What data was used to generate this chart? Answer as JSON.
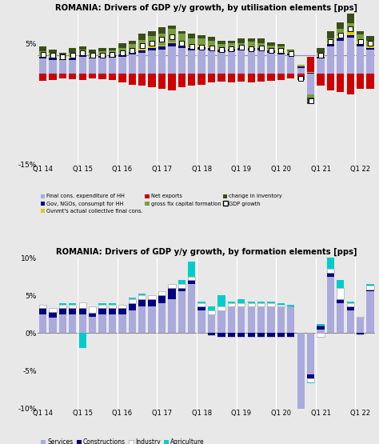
{
  "title1": "ROMANIA: Drivers of GDP y/y growth, by utilisation elements [pps]",
  "title2": "ROMANIA: Drivers of GDP y/y growth, by formation elements [pps]",
  "xtick_labels": [
    "Q1 14",
    "",
    "",
    "",
    "Q1 15",
    "",
    "",
    "",
    "Q1 16",
    "",
    "",
    "",
    "Q1 17",
    "",
    "",
    "",
    "Q1 18",
    "",
    "",
    "",
    "Q1 19",
    "",
    "",
    "",
    "Q1 20",
    "",
    "",
    "",
    "Q1 21",
    "",
    "",
    "",
    "Q1 22",
    ""
  ],
  "n": 34,
  "util": {
    "final_cons_hh": [
      2.5,
      2.3,
      2.2,
      2.3,
      2.8,
      2.5,
      2.6,
      2.7,
      2.8,
      3.2,
      3.5,
      3.8,
      4.0,
      4.5,
      4.2,
      3.8,
      4.0,
      3.8,
      3.6,
      3.7,
      3.8,
      3.9,
      3.8,
      3.5,
      3.2,
      3.0,
      1.0,
      -3.5,
      2.5,
      4.5,
      5.5,
      6.0,
      4.5,
      4.0
    ],
    "gov_ngos": [
      0.3,
      0.3,
      0.2,
      0.2,
      0.2,
      0.2,
      0.3,
      0.3,
      0.4,
      0.4,
      0.4,
      0.5,
      0.5,
      0.5,
      0.4,
      0.4,
      0.4,
      0.4,
      0.4,
      0.4,
      0.4,
      0.4,
      0.4,
      0.4,
      0.3,
      0.3,
      0.2,
      0.2,
      0.3,
      0.4,
      0.4,
      0.4,
      0.4,
      0.3
    ],
    "gvnmt_collective": [
      0.1,
      0.2,
      0.2,
      0.3,
      0.2,
      0.1,
      0.1,
      0.1,
      0.1,
      0.1,
      0.2,
      0.2,
      0.2,
      0.2,
      0.2,
      0.2,
      0.2,
      0.2,
      0.1,
      0.1,
      0.1,
      0.1,
      0.1,
      0.1,
      0.5,
      0.1,
      0.1,
      0.1,
      0.1,
      0.2,
      0.4,
      0.5,
      0.4,
      0.2
    ],
    "net_exports": [
      -1.2,
      -1.0,
      -0.8,
      -0.9,
      -1.0,
      -0.8,
      -0.9,
      -1.0,
      -1.5,
      -1.8,
      -2.0,
      -2.2,
      -2.5,
      -2.8,
      -2.3,
      -2.0,
      -1.8,
      -1.5,
      -1.3,
      -1.4,
      -1.3,
      -1.5,
      -1.3,
      -1.2,
      -1.0,
      -0.8,
      -0.5,
      2.5,
      -2.0,
      -2.8,
      -3.0,
      -3.5,
      -2.5,
      -2.5
    ],
    "gross_fix_cap": [
      0.8,
      0.7,
      0.6,
      0.7,
      0.8,
      0.6,
      0.7,
      0.8,
      1.0,
      1.2,
      1.5,
      1.8,
      2.0,
      2.2,
      1.8,
      1.5,
      1.3,
      1.0,
      0.8,
      0.9,
      0.8,
      0.9,
      0.8,
      0.7,
      0.5,
      0.4,
      0.2,
      -0.5,
      0.5,
      0.8,
      1.2,
      1.5,
      1.2,
      1.0
    ],
    "inventory": [
      0.8,
      0.5,
      0.3,
      0.8,
      0.5,
      0.6,
      0.5,
      0.3,
      0.8,
      0.5,
      1.0,
      0.8,
      1.0,
      0.6,
      0.5,
      0.8,
      0.5,
      0.7,
      0.5,
      0.3,
      0.7,
      0.5,
      0.7,
      0.5,
      0.4,
      0.2,
      -0.5,
      -1.0,
      0.8,
      1.2,
      1.0,
      1.8,
      0.5,
      0.8
    ],
    "gdp_growth": [
      3.2,
      3.0,
      2.8,
      3.0,
      3.4,
      3.0,
      3.1,
      3.2,
      3.5,
      3.9,
      4.7,
      5.0,
      5.7,
      6.1,
      5.0,
      4.5,
      4.4,
      4.3,
      4.0,
      4.1,
      4.4,
      4.1,
      4.3,
      3.9,
      3.9,
      3.3,
      -0.8,
      -4.5,
      3.0,
      5.3,
      6.4,
      7.5,
      5.3,
      5.0
    ]
  },
  "form": {
    "services": [
      2.5,
      2.0,
      2.5,
      2.5,
      2.5,
      2.2,
      2.5,
      2.5,
      2.5,
      3.0,
      3.5,
      3.5,
      4.0,
      4.5,
      5.5,
      6.5,
      3.0,
      2.5,
      3.0,
      3.5,
      3.5,
      3.5,
      3.5,
      3.5,
      3.5,
      3.5,
      -10.0,
      -5.5,
      0.5,
      7.5,
      4.0,
      3.0,
      2.0,
      5.5
    ],
    "constructions": [
      0.8,
      0.8,
      0.8,
      0.8,
      0.8,
      0.5,
      0.8,
      0.8,
      0.8,
      1.0,
      1.0,
      1.0,
      1.0,
      1.5,
      0.5,
      0.5,
      0.5,
      -0.3,
      -0.5,
      -0.5,
      -0.5,
      -0.5,
      -0.5,
      -0.5,
      -0.5,
      -0.5,
      -0.5,
      -0.5,
      0.5,
      0.5,
      0.5,
      0.5,
      -0.2,
      0.3
    ],
    "industry": [
      0.5,
      0.5,
      0.5,
      0.5,
      0.8,
      0.8,
      0.5,
      0.5,
      0.5,
      0.5,
      0.5,
      0.5,
      0.5,
      0.5,
      0.5,
      0.5,
      0.5,
      0.5,
      0.5,
      0.5,
      0.5,
      0.5,
      0.5,
      0.5,
      0.3,
      0.0,
      -0.3,
      -0.5,
      -0.5,
      0.5,
      1.5,
      0.5,
      0.2,
      0.5
    ],
    "agriculture": [
      0.0,
      0.0,
      0.2,
      0.2,
      -2.0,
      0.0,
      0.2,
      0.2,
      0.0,
      0.2,
      0.2,
      0.0,
      0.0,
      0.0,
      0.5,
      2.0,
      0.2,
      0.5,
      1.5,
      0.2,
      0.5,
      0.2,
      0.2,
      0.2,
      0.2,
      0.2,
      -0.2,
      -0.2,
      0.2,
      1.5,
      1.0,
      0.2,
      0.0,
      0.2
    ]
  },
  "colors": {
    "final_cons_hh": "#aaaadd",
    "gov_ngos": "#000080",
    "gvnmt_collective": "#ddcc00",
    "net_exports": "#cc0000",
    "gross_fix_cap": "#7a9e3f",
    "inventory": "#3a4e1a",
    "services": "#aaaadd",
    "constructions": "#000080",
    "industry": "#ffffff",
    "agriculture": "#00cccc"
  },
  "ylim1": [
    -15,
    10
  ],
  "ylim2": [
    -10,
    10
  ],
  "yticks1": [
    -15,
    -10,
    -5,
    0,
    5
  ],
  "ytick_labels1": [
    "-15%",
    "",
    "",
    "",
    "5%"
  ],
  "yticks2": [
    -10,
    -5,
    0,
    5,
    10
  ],
  "ytick_labels2": [
    "-10%",
    "-5%",
    "0%",
    "5%",
    "10%"
  ],
  "bg_color": "#e8e8e8",
  "hline_color": "#8888bb",
  "sep_color": "#ffffff",
  "legend1": [
    {
      "label": "Final cons. expenditure of HH",
      "color": "#aaaadd",
      "type": "patch"
    },
    {
      "label": "Gov, NGOs, consumpt for HH",
      "color": "#000080",
      "type": "patch"
    },
    {
      "label": "Gvnmt's actual collective final cons.",
      "color": "#ddcc00",
      "type": "patch"
    },
    {
      "label": "Net exports",
      "color": "#cc0000",
      "type": "patch"
    },
    {
      "label": "gross fix capital formation",
      "color": "#7a9e3f",
      "type": "patch"
    },
    {
      "label": "change in inventory",
      "color": "#3a4e1a",
      "type": "patch"
    },
    {
      "label": "GDP growth",
      "color": "#ffffff",
      "type": "square"
    }
  ],
  "legend2": [
    {
      "label": "Services",
      "color": "#aaaadd"
    },
    {
      "label": "Constructions",
      "color": "#000080"
    },
    {
      "label": "Industry",
      "color": "#ffffff"
    },
    {
      "label": "Agriculture",
      "color": "#00cccc"
    }
  ]
}
